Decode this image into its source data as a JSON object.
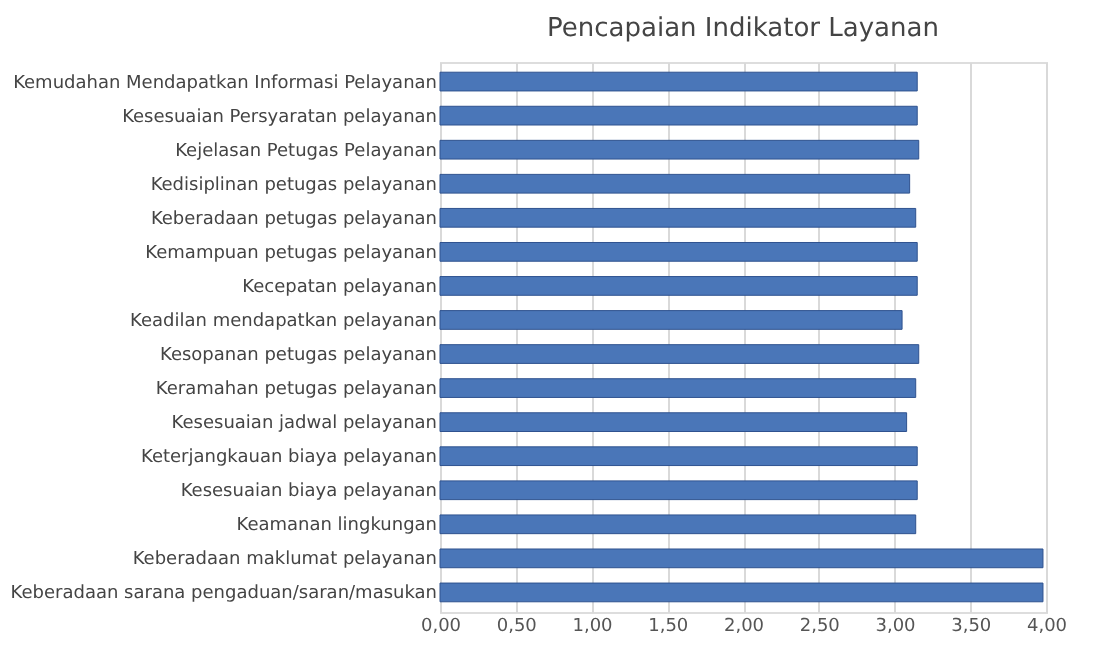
{
  "chart_data": {
    "type": "bar",
    "orientation": "horizontal",
    "title": "Pencapaian Indikator Layanan",
    "categories": [
      "Kemudahan Mendapatkan Informasi Pelayanan",
      "Kesesuaian Persyaratan pelayanan",
      "Kejelasan Petugas Pelayanan",
      "Kedisiplinan petugas pelayanan",
      "Keberadaan petugas pelayanan",
      "Kemampuan petugas pelayanan",
      "Kecepatan pelayanan",
      "Keadilan mendapatkan pelayanan",
      "Kesopanan petugas pelayanan",
      "Keramahan petugas pelayanan",
      "Kesesuaian jadwal pelayanan",
      "Keterjangkauan biaya pelayanan",
      "Kesesuaian biaya pelayanan",
      "Keamanan lingkungan",
      "Keberadaan maklumat pelayanan",
      "Keberadaan sarana pengaduan/saran/masukan"
    ],
    "values": [
      3.15,
      3.15,
      3.16,
      3.1,
      3.14,
      3.15,
      3.15,
      3.05,
      3.16,
      3.14,
      3.08,
      3.15,
      3.15,
      3.14,
      3.98,
      3.98
    ],
    "color": "#4a76b8",
    "xlim": [
      0,
      4
    ],
    "xticks": [
      {
        "value": 0,
        "label": "0,00"
      },
      {
        "value": 0.5,
        "label": "0,50"
      },
      {
        "value": 1,
        "label": "1,00"
      },
      {
        "value": 1.5,
        "label": "1,50"
      },
      {
        "value": 2,
        "label": "2,00"
      },
      {
        "value": 2.5,
        "label": "2,50"
      },
      {
        "value": 3,
        "label": "3,00"
      },
      {
        "value": 3.5,
        "label": "3,50"
      },
      {
        "value": 4,
        "label": "4,00"
      }
    ],
    "grid": "x"
  }
}
